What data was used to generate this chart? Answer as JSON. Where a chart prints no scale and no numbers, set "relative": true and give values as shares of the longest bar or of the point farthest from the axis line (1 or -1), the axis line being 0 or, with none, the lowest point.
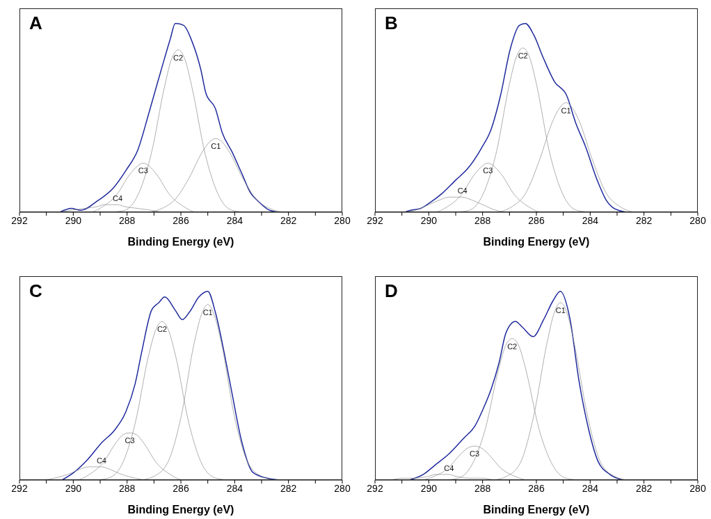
{
  "chart_data": [
    {
      "type": "line",
      "title": "A",
      "xlabel": "Binding Energy (eV)",
      "relative": true,
      "tick_labels": "x",
      "marker": "none",
      "line_style": "solid",
      "xlim": [
        292,
        280
      ],
      "xticks": [
        292,
        {
          "value": 291,
          "label": null
        },
        290,
        {
          "value": 289,
          "label": null
        },
        288,
        {
          "value": 287,
          "label": null
        },
        286,
        {
          "value": 285,
          "label": null
        },
        284,
        {
          "value": 283,
          "label": null
        },
        282,
        {
          "value": 281,
          "label": null
        },
        280
      ],
      "series": [
        {
          "color": "#1f2a9c",
          "x": [
            290.5,
            290.07,
            289.72,
            289.1,
            288.5,
            288.05,
            287.6,
            287.18,
            286.74,
            286.39,
            286.21,
            285.9,
            285.6,
            285.25,
            285.07,
            284.72,
            284.46,
            284.1,
            283.75,
            283.4,
            283.14,
            282.7,
            282.35
          ],
          "values": [
            0,
            0.02,
            0.01,
            0.06,
            0.13,
            0.22,
            0.33,
            0.53,
            0.75,
            0.92,
            1,
            0.99,
            0.91,
            0.75,
            0.63,
            0.55,
            0.42,
            0.32,
            0.21,
            0.1,
            0.06,
            0.01,
            0
          ]
        },
        {
          "name": "C1",
          "color": "#8c8c8c",
          "x": [
            282.2,
            282.7,
            283.2,
            283.7,
            284.2,
            284.45,
            284.7,
            284.95,
            285.2,
            285.7,
            286.2,
            286.7,
            287.2
          ],
          "values": [
            0,
            0.02,
            0.07,
            0.18,
            0.32,
            0.37,
            0.39,
            0.37,
            0.32,
            0.18,
            0.07,
            0.02,
            0
          ]
        },
        {
          "name": "C2",
          "color": "#8c8c8c",
          "x": [
            283.6,
            284.1,
            284.6,
            285.1,
            285.6,
            285.85,
            286.1,
            286.35,
            286.6,
            287.1,
            287.6,
            288.1,
            288.6
          ],
          "values": [
            0,
            0.01,
            0.09,
            0.31,
            0.67,
            0.81,
            0.86,
            0.81,
            0.67,
            0.31,
            0.09,
            0.01,
            0
          ]
        },
        {
          "name": "C3",
          "color": "#8c8c8c",
          "x": [
            284.9,
            285.4,
            285.9,
            286.4,
            286.9,
            287.15,
            287.4,
            287.65,
            287.9,
            288.4,
            288.9,
            289.4,
            289.9
          ],
          "values": [
            0,
            0,
            0.03,
            0.09,
            0.2,
            0.24,
            0.26,
            0.24,
            0.2,
            0.09,
            0.03,
            0,
            0
          ]
        },
        {
          "name": "C4",
          "color": "#8c8c8c",
          "x": [
            286.1,
            286.6,
            287.1,
            287.6,
            288.1,
            288.35,
            288.6,
            288.85,
            289.1,
            289.6,
            290.1,
            290.6,
            291.1
          ],
          "values": [
            0,
            0,
            0.01,
            0.02,
            0.03,
            0.04,
            0.04,
            0.04,
            0.03,
            0.02,
            0.01,
            0,
            0
          ]
        }
      ]
    },
    {
      "type": "line",
      "title": "B",
      "xlabel": "Binding Energy (eV)",
      "relative": true,
      "tick_labels": "x",
      "marker": "none",
      "line_style": "solid",
      "xlim": [
        292,
        280
      ],
      "xticks": [
        292,
        {
          "value": 291,
          "label": null
        },
        290,
        {
          "value": 289,
          "label": null
        },
        288,
        {
          "value": 287,
          "label": null
        },
        286,
        {
          "value": 285,
          "label": null
        },
        284,
        {
          "value": 283,
          "label": null
        },
        282,
        {
          "value": 281,
          "label": null
        },
        280
      ],
      "series": [
        {
          "color": "#1f2a9c",
          "x": [
            290.9,
            290.67,
            290.3,
            289.96,
            289.5,
            289.0,
            288.56,
            288.04,
            287.68,
            287.33,
            286.98,
            286.63,
            286.41,
            286.1,
            285.75,
            285.32,
            284.88,
            284.53,
            284.18,
            283.74,
            283.39,
            282.95,
            282.6
          ],
          "values": [
            0,
            0.01,
            0.02,
            0.05,
            0.1,
            0.17,
            0.23,
            0.34,
            0.44,
            0.62,
            0.86,
            0.99,
            1,
            0.94,
            0.82,
            0.69,
            0.62,
            0.47,
            0.35,
            0.17,
            0.06,
            0.01,
            0
          ]
        },
        {
          "name": "C1",
          "color": "#8c8c8c",
          "x": [
            282.4,
            282.9,
            283.4,
            283.9,
            284.4,
            284.65,
            284.9,
            285.15,
            285.4,
            285.9,
            286.4,
            286.9,
            287.4
          ],
          "values": [
            0,
            0.03,
            0.1,
            0.27,
            0.48,
            0.55,
            0.58,
            0.55,
            0.48,
            0.27,
            0.1,
            0.03,
            0
          ]
        },
        {
          "name": "C2",
          "color": "#8c8c8c",
          "x": [
            284,
            284.5,
            285,
            285.5,
            286,
            286.25,
            286.5,
            286.75,
            287,
            287.5,
            288,
            288.5,
            289
          ],
          "values": [
            0,
            0.01,
            0.09,
            0.31,
            0.68,
            0.82,
            0.87,
            0.82,
            0.68,
            0.31,
            0.09,
            0.01,
            0
          ]
        },
        {
          "name": "C3",
          "color": "#8c8c8c",
          "x": [
            285.3,
            285.8,
            286.3,
            286.8,
            287.3,
            287.55,
            287.8,
            288.05,
            288.3,
            288.8,
            289.3,
            289.8,
            290.3
          ],
          "values": [
            0,
            0,
            0.03,
            0.09,
            0.2,
            0.24,
            0.26,
            0.24,
            0.2,
            0.09,
            0.03,
            0,
            0
          ]
        },
        {
          "name": "C4",
          "color": "#8c8c8c",
          "x": [
            286.5,
            287,
            287.5,
            288,
            288.5,
            288.75,
            289,
            289.25,
            289.5,
            290,
            290.5,
            291,
            291.5
          ],
          "values": [
            0,
            0,
            0.01,
            0.04,
            0.07,
            0.08,
            0.08,
            0.08,
            0.07,
            0.04,
            0.01,
            0,
            0
          ]
        }
      ]
    },
    {
      "type": "line",
      "title": "C",
      "xlabel": "Binding Energy (eV)",
      "relative": true,
      "tick_labels": "x",
      "marker": "none",
      "line_style": "solid",
      "xlim": [
        292,
        280
      ],
      "xticks": [
        292,
        {
          "value": 291,
          "label": null
        },
        290,
        {
          "value": 289,
          "label": null
        },
        288,
        {
          "value": 287,
          "label": null
        },
        286,
        {
          "value": 285,
          "label": null
        },
        284,
        {
          "value": 283,
          "label": null
        },
        282,
        {
          "value": 281,
          "label": null
        },
        280
      ],
      "series": [
        {
          "color": "#1f2a9c",
          "x": [
            290.42,
            289.98,
            289.46,
            288.93,
            288.49,
            288.05,
            287.7,
            287.44,
            287.09,
            286.82,
            286.6,
            286.21,
            285.95,
            285.68,
            285.33,
            285.0,
            284.72,
            284.37,
            284.1,
            283.75,
            283.32,
            282.79,
            282.35
          ],
          "values": [
            0,
            0.04,
            0.11,
            0.2,
            0.26,
            0.36,
            0.51,
            0.69,
            0.9,
            0.94,
            0.97,
            0.9,
            0.85,
            0.89,
            0.97,
            1,
            0.89,
            0.66,
            0.46,
            0.21,
            0.04,
            0.01,
            0
          ]
        },
        {
          "name": "C1",
          "color": "#8c8c8c",
          "x": [
            282.5,
            283,
            283.5,
            284,
            284.5,
            284.75,
            285,
            285.25,
            285.5,
            286,
            286.5,
            287,
            287.5
          ],
          "values": [
            0,
            0.02,
            0.09,
            0.33,
            0.73,
            0.87,
            0.93,
            0.87,
            0.73,
            0.33,
            0.09,
            0.02,
            0
          ]
        },
        {
          "name": "C2",
          "color": "#8c8c8c",
          "x": [
            284.2,
            284.7,
            285.2,
            285.7,
            286.2,
            286.45,
            286.7,
            286.95,
            287.2,
            287.7,
            288.2,
            288.7,
            289.2
          ],
          "values": [
            0,
            0.01,
            0.08,
            0.3,
            0.66,
            0.79,
            0.84,
            0.79,
            0.66,
            0.3,
            0.08,
            0.01,
            0
          ]
        },
        {
          "name": "C3",
          "color": "#8c8c8c",
          "x": [
            285.4,
            285.9,
            286.4,
            286.9,
            287.4,
            287.65,
            287.9,
            288.15,
            288.4,
            288.9,
            289.4,
            289.9,
            290.4
          ],
          "values": [
            0,
            0,
            0.03,
            0.09,
            0.2,
            0.24,
            0.25,
            0.24,
            0.2,
            0.09,
            0.03,
            0,
            0
          ]
        },
        {
          "name": "C4",
          "color": "#8c8c8c",
          "x": [
            286.7,
            287.2,
            287.7,
            288.2,
            288.7,
            288.95,
            289.2,
            289.45,
            289.7,
            290.2,
            290.7,
            291.2,
            291.7
          ],
          "values": [
            0,
            0,
            0.01,
            0.03,
            0.06,
            0.07,
            0.07,
            0.07,
            0.06,
            0.03,
            0.01,
            0,
            0
          ]
        }
      ]
    },
    {
      "type": "line",
      "title": "D",
      "xlabel": "Binding Energy (eV)",
      "relative": true,
      "tick_labels": "x",
      "marker": "none",
      "line_style": "solid",
      "xlim": [
        292,
        280
      ],
      "xticks": [
        292,
        {
          "value": 291,
          "label": null
        },
        290,
        {
          "value": 289,
          "label": null
        },
        288,
        {
          "value": 287,
          "label": null
        },
        286,
        {
          "value": 285,
          "label": null
        },
        284,
        {
          "value": 283,
          "label": null
        },
        282,
        {
          "value": 281,
          "label": null
        },
        280
      ],
      "series": [
        {
          "color": "#1f2a9c",
          "x": [
            290.73,
            290.2,
            289.76,
            289.24,
            288.71,
            288.27,
            288.0,
            287.66,
            287.39,
            287.13,
            286.78,
            286.52,
            286.12,
            285.73,
            285.38,
            285.11,
            284.76,
            284.41,
            284.06,
            283.71,
            283.27,
            282.75
          ],
          "values": [
            0,
            0.03,
            0.08,
            0.14,
            0.22,
            0.29,
            0.37,
            0.49,
            0.62,
            0.78,
            0.84,
            0.81,
            0.76,
            0.85,
            0.95,
            1,
            0.86,
            0.52,
            0.27,
            0.1,
            0.03,
            0
          ]
        },
        {
          "name": "C1",
          "color": "#8c8c8c",
          "x": [
            282.6,
            283.1,
            283.6,
            284.1,
            284.6,
            284.85,
            285.1,
            285.35,
            285.6,
            286.1,
            286.6,
            287.1,
            287.6
          ],
          "values": [
            0,
            0.02,
            0.09,
            0.34,
            0.73,
            0.88,
            0.94,
            0.88,
            0.73,
            0.34,
            0.09,
            0.02,
            0
          ]
        },
        {
          "name": "C2",
          "color": "#8c8c8c",
          "x": [
            284.4,
            284.9,
            285.4,
            285.9,
            286.4,
            286.65,
            286.9,
            287.15,
            287.4,
            287.9,
            288.4,
            288.9,
            289.4
          ],
          "values": [
            0,
            0.01,
            0.08,
            0.27,
            0.59,
            0.71,
            0.75,
            0.71,
            0.59,
            0.27,
            0.08,
            0.01,
            0
          ]
        },
        {
          "name": "C3",
          "color": "#8c8c8c",
          "x": [
            285.8,
            286.3,
            286.8,
            287.3,
            287.8,
            288.05,
            288.3,
            288.55,
            288.8,
            289.3,
            289.8,
            290.3,
            290.8
          ],
          "values": [
            0,
            0,
            0.02,
            0.06,
            0.14,
            0.17,
            0.18,
            0.17,
            0.14,
            0.06,
            0.02,
            0,
            0
          ]
        },
        {
          "name": "C4",
          "color": "#8c8c8c",
          "x": [
            287,
            287.5,
            288,
            288.5,
            289,
            289.25,
            289.5,
            289.75,
            290,
            290.5,
            291,
            291.5,
            292
          ],
          "values": [
            0,
            0,
            0.01,
            0.01,
            0.02,
            0.03,
            0.03,
            0.03,
            0.02,
            0.01,
            0.01,
            0,
            0
          ]
        }
      ]
    }
  ]
}
